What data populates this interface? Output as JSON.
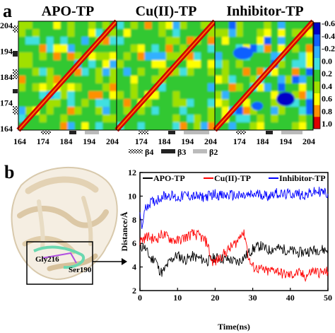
{
  "panel_a": {
    "letter": "a",
    "maps": [
      {
        "title": "APO-TP"
      },
      {
        "title": "Cu(II)-TP"
      },
      {
        "title": "Inhibitor-TP"
      }
    ],
    "x_ticks": [
      "164",
      "174",
      "184",
      "194",
      "204"
    ],
    "y_ticks": [
      "204",
      "194",
      "184",
      "174",
      "164"
    ],
    "colorbar": {
      "labels": [
        "-0.6",
        "-0.4",
        "-0.2",
        "0.0",
        "0.2",
        "0.4",
        "0.6",
        "0.8",
        "1.0"
      ],
      "colors": [
        "#0000c8",
        "#1060ff",
        "#30b0ff",
        "#40e0e0",
        "#30c830",
        "#a0e000",
        "#ffff00",
        "#ff9000",
        "#e00000"
      ]
    },
    "legend": [
      {
        "label": "β4"
      },
      {
        "label": "β3"
      },
      {
        "label": "β2"
      }
    ]
  },
  "panel_b": {
    "letter": "b",
    "structure": {
      "labels": [
        "Gly216",
        "Ser190"
      ]
    }
  },
  "chart_data": {
    "type": "line",
    "title": "",
    "xlabel": "Time(ns)",
    "ylabel": "Distance/Å",
    "xlim": [
      0,
      50
    ],
    "ylim": [
      2,
      12
    ],
    "x_ticks": [
      0,
      10,
      20,
      30,
      40,
      50
    ],
    "y_ticks": [
      2,
      4,
      6,
      8,
      10,
      12
    ],
    "legend_placement": "top",
    "series": [
      {
        "name": "APO-TP",
        "color": "#000000",
        "points": [
          [
            0,
            5.6
          ],
          [
            1,
            5.8
          ],
          [
            2,
            5.2
          ],
          [
            3,
            4.6
          ],
          [
            4,
            4.8
          ],
          [
            5,
            3.8
          ],
          [
            6,
            3.5
          ],
          [
            7,
            4.0
          ],
          [
            8,
            4.5
          ],
          [
            9,
            4.8
          ],
          [
            10,
            5.0
          ],
          [
            12,
            4.6
          ],
          [
            14,
            4.9
          ],
          [
            16,
            4.7
          ],
          [
            18,
            4.5
          ],
          [
            20,
            4.8
          ],
          [
            22,
            4.7
          ],
          [
            24,
            4.6
          ],
          [
            26,
            4.4
          ],
          [
            28,
            4.9
          ],
          [
            30,
            5.5
          ],
          [
            32,
            5.8
          ],
          [
            34,
            5.4
          ],
          [
            36,
            5.6
          ],
          [
            38,
            5.5
          ],
          [
            40,
            5.4
          ],
          [
            42,
            5.2
          ],
          [
            44,
            5.3
          ],
          [
            46,
            5.4
          ],
          [
            48,
            5.5
          ],
          [
            50,
            5.4
          ]
        ]
      },
      {
        "name": "Cu(II)-TP",
        "color": "#ff0000",
        "points": [
          [
            0,
            6.2
          ],
          [
            2,
            6.6
          ],
          [
            4,
            6.3
          ],
          [
            6,
            6.8
          ],
          [
            8,
            6.4
          ],
          [
            10,
            6.2
          ],
          [
            12,
            6.5
          ],
          [
            14,
            6.8
          ],
          [
            16,
            6.6
          ],
          [
            18,
            6.0
          ],
          [
            19,
            4.5
          ],
          [
            20,
            4.4
          ],
          [
            22,
            5.0
          ],
          [
            24,
            5.6
          ],
          [
            26,
            6.2
          ],
          [
            27,
            7.0
          ],
          [
            28,
            6.6
          ],
          [
            29,
            4.6
          ],
          [
            30,
            4.0
          ],
          [
            32,
            3.8
          ],
          [
            34,
            3.6
          ],
          [
            36,
            3.8
          ],
          [
            38,
            3.4
          ],
          [
            40,
            3.3
          ],
          [
            42,
            3.5
          ],
          [
            44,
            3.2
          ],
          [
            46,
            3.7
          ],
          [
            48,
            3.5
          ],
          [
            50,
            3.6
          ]
        ]
      },
      {
        "name": "Inhibitor-TP",
        "color": "#0000ff",
        "points": [
          [
            0,
            8.8
          ],
          [
            0.5,
            7.0
          ],
          [
            1,
            8.5
          ],
          [
            2,
            9.3
          ],
          [
            4,
            9.6
          ],
          [
            6,
            10.0
          ],
          [
            8,
            10.1
          ],
          [
            10,
            9.8
          ],
          [
            12,
            10.1
          ],
          [
            14,
            10.0
          ],
          [
            16,
            9.9
          ],
          [
            18,
            10.0
          ],
          [
            20,
            10.2
          ],
          [
            22,
            10.0
          ],
          [
            24,
            10.1
          ],
          [
            26,
            10.0
          ],
          [
            28,
            10.0
          ],
          [
            30,
            10.1
          ],
          [
            32,
            10.2
          ],
          [
            34,
            10.0
          ],
          [
            36,
            10.3
          ],
          [
            38,
            10.1
          ],
          [
            40,
            10.2
          ],
          [
            42,
            10.2
          ],
          [
            44,
            10.1
          ],
          [
            46,
            10.3
          ],
          [
            48,
            10.4
          ],
          [
            50,
            10.2
          ]
        ]
      }
    ]
  }
}
